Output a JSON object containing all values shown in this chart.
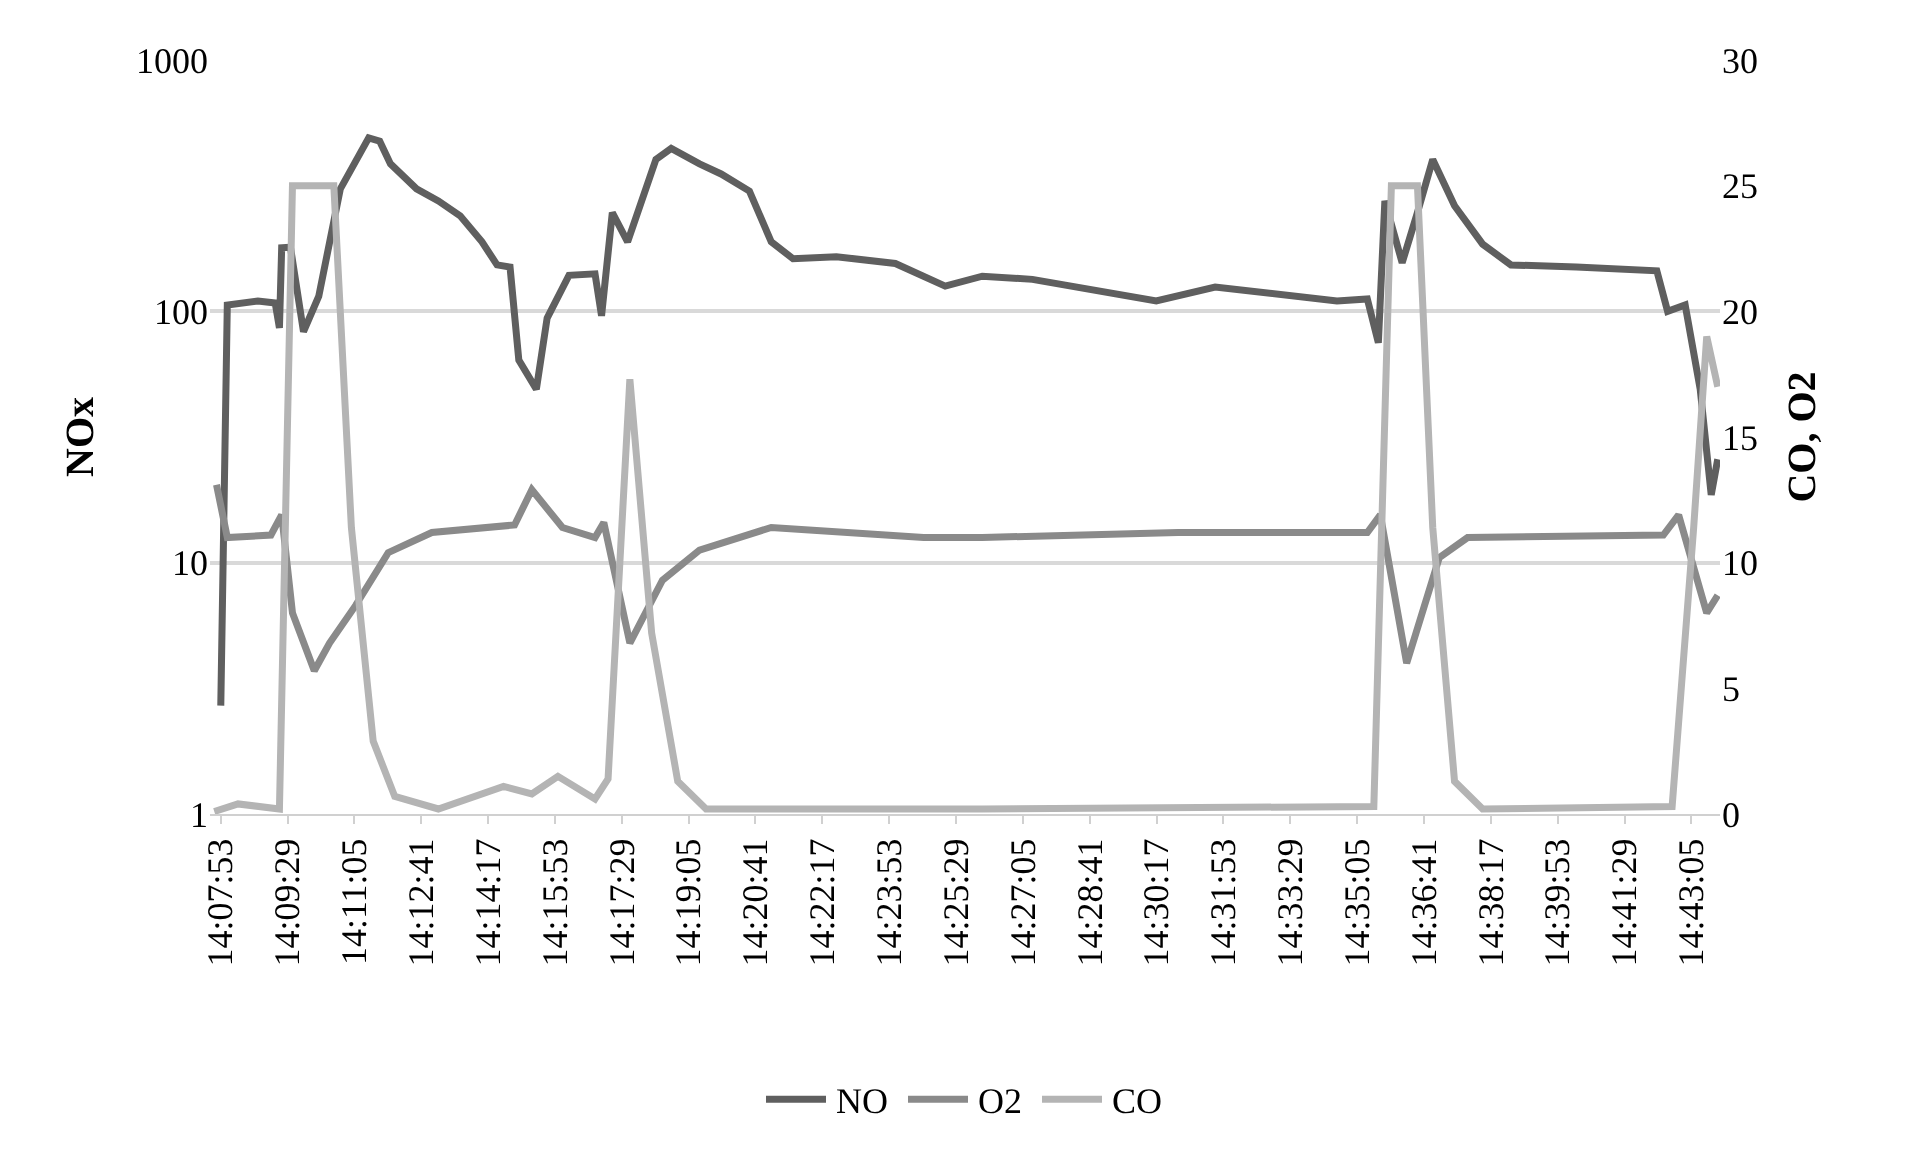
{
  "chart_data": {
    "type": "line",
    "xlabel": null,
    "ylabel": "NOx",
    "y2label": "CO, O2",
    "log": "y",
    "grid": "y",
    "legend": "bottom",
    "marker": "none",
    "line_style": "solid",
    "xlim": [
      14.1271,
      14.7295
    ],
    "xticks": [
      {
        "value": 14.1314,
        "label": "14:07:53"
      },
      {
        "value": 14.1581,
        "label": "14:09:29"
      },
      {
        "value": 14.1847,
        "label": "14:11:05"
      },
      {
        "value": 14.2114,
        "label": "14:12:41"
      },
      {
        "value": 14.2381,
        "label": "14:14:17"
      },
      {
        "value": 14.2647,
        "label": "14:15:53"
      },
      {
        "value": 14.2914,
        "label": "14:17:29"
      },
      {
        "value": 14.3181,
        "label": "14:19:05"
      },
      {
        "value": 14.3447,
        "label": "14:20:41"
      },
      {
        "value": 14.3714,
        "label": "14:22:17"
      },
      {
        "value": 14.3981,
        "label": "14:23:53"
      },
      {
        "value": 14.4247,
        "label": "14:25:29"
      },
      {
        "value": 14.4514,
        "label": "14:27:05"
      },
      {
        "value": 14.4781,
        "label": "14:28:41"
      },
      {
        "value": 14.5047,
        "label": "14:30:17"
      },
      {
        "value": 14.5314,
        "label": "14:31:53"
      },
      {
        "value": 14.5581,
        "label": "14:33:29"
      },
      {
        "value": 14.5847,
        "label": "14:35:05"
      },
      {
        "value": 14.6114,
        "label": "14:36:41"
      },
      {
        "value": 14.6381,
        "label": "14:38:17"
      },
      {
        "value": 14.6647,
        "label": "14:39:53"
      },
      {
        "value": 14.6914,
        "label": "14:41:29"
      },
      {
        "value": 14.7181,
        "label": "14:43:05"
      }
    ],
    "ylim": [
      1,
      1000
    ],
    "yticks": [
      1,
      10,
      100,
      1000
    ],
    "y2lim": [
      0,
      30
    ],
    "y2ticks": [
      0,
      5,
      10,
      15,
      20,
      25,
      30
    ],
    "series": [
      {
        "name": "NO",
        "color": "#5f5f5f",
        "x": [
          14.1314,
          14.134,
          14.1462,
          14.1531,
          14.1548,
          14.1557,
          14.1592,
          14.1644,
          14.1705,
          14.1791,
          14.1904,
          14.1948,
          14.1991,
          14.2095,
          14.2182,
          14.2269,
          14.2356,
          14.2416,
          14.2468,
          14.2503,
          14.2573,
          14.2616,
          14.2703,
          14.2807,
          14.2833,
          14.2876,
          14.2937,
          14.305,
          14.3111,
          14.3224,
          14.331,
          14.3423,
          14.351,
          14.3597,
          14.377,
          14.4005,
          14.4204,
          14.4352,
          14.4552,
          14.5046,
          14.5281,
          14.5767,
          14.5888,
          14.5932,
          14.5958,
          14.6027,
          14.6088,
          14.6149,
          14.6236,
          14.6348,
          14.6461,
          14.6722,
          14.7043,
          14.7086,
          14.7156,
          14.7216,
          14.726,
          14.7286
        ],
        "values": [
          2.7,
          106,
          110,
          108,
          86,
          179,
          180,
          83,
          115,
          307,
          490,
          475,
          386,
          307,
          275,
          240,
          189,
          153,
          150,
          64,
          49,
          94,
          139,
          141,
          96,
          247,
          189,
          402,
          445,
          386,
          352,
          301,
          189,
          162,
          165,
          155,
          126,
          138,
          134,
          110,
          125,
          110,
          112,
          75,
          275,
          156,
          247,
          402,
          263,
          185,
          153,
          150,
          145,
          100,
          106,
          49,
          18.6,
          25.8
        ]
      },
      {
        "name": "O2",
        "color": "#8a8a8a",
        "axis": "y2",
        "x": [
          14.1297,
          14.134,
          14.1514,
          14.1557,
          14.16,
          14.1687,
          14.1748,
          14.1852,
          14.1982,
          14.2156,
          14.2486,
          14.2555,
          14.2677,
          14.2807,
          14.2842,
          14.2946,
          14.3076,
          14.3224,
          14.351,
          14.4118,
          14.4352,
          14.5133,
          14.5888,
          14.594,
          14.6045,
          14.6175,
          14.6288,
          14.7069,
          14.713,
          14.7242,
          14.7286
        ],
        "values": [
          13.1,
          11.0,
          11.1,
          11.9,
          8.0,
          5.7,
          6.8,
          8.3,
          10.4,
          11.2,
          11.5,
          12.9,
          11.4,
          11.0,
          11.6,
          6.8,
          9.3,
          10.5,
          11.4,
          11.0,
          11.0,
          11.2,
          11.2,
          11.9,
          6.0,
          10.2,
          11.0,
          11.1,
          11.9,
          8.0,
          8.7
        ]
      },
      {
        "name": "CO",
        "color": "#b4b4b4",
        "axis": "y2",
        "x": [
          14.1288,
          14.1383,
          14.1548,
          14.16,
          14.1765,
          14.1835,
          14.1922,
          14.2008,
          14.2182,
          14.2442,
          14.2555,
          14.2659,
          14.2807,
          14.2859,
          14.2946,
          14.3033,
          14.3137,
          14.325,
          14.4352,
          14.5914,
          14.5984,
          14.6088,
          14.6149,
          14.6236,
          14.6348,
          14.7104,
          14.719,
          14.7242,
          14.7286
        ],
        "values": [
          0.1,
          0.4,
          0.2,
          25,
          25,
          11.4,
          2.9,
          0.7,
          0.2,
          1.1,
          0.8,
          1.5,
          0.6,
          1.4,
          17.3,
          7.2,
          1.3,
          0.2,
          0.2,
          0.3,
          25,
          25,
          11.4,
          1.3,
          0.2,
          0.3,
          11.4,
          19,
          17
        ]
      }
    ]
  }
}
